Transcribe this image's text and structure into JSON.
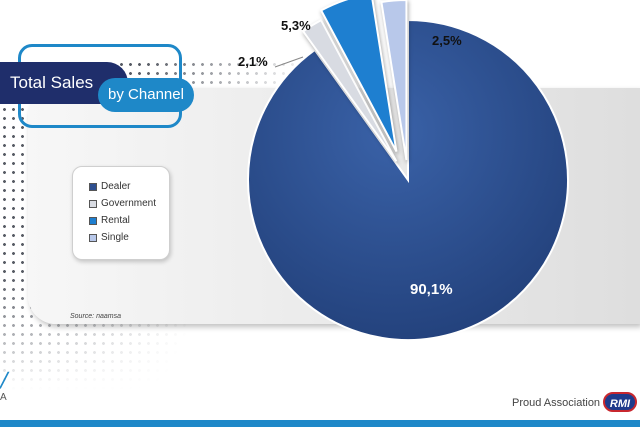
{
  "header": {
    "title": "Total Sales",
    "subtitle": "by Channel"
  },
  "source": "Source: naamsa",
  "footer": {
    "text": "Proud Association of",
    "logo_text": "RMI"
  },
  "corner": {
    "mark": "╱",
    "letter": "A"
  },
  "colors": {
    "accent": "#1e88c8",
    "navy": "#1f2e6b",
    "rmi_red": "#c8272e"
  },
  "chart_data": {
    "type": "pie",
    "categories": [
      "Dealer",
      "Government",
      "Rental",
      "Single"
    ],
    "values": [
      90.1,
      2.1,
      5.3,
      2.5
    ],
    "labels": [
      "90,1%",
      "2,1%",
      "5,3%",
      "2,5%"
    ],
    "colors": [
      "#2e4f8f",
      "#d8dbe2",
      "#1e7fd0",
      "#b8c8ea"
    ],
    "exploded": [
      "Government",
      "Rental",
      "Single"
    ],
    "legend_position": "left",
    "title": "",
    "xlabel": "",
    "ylabel": ""
  }
}
